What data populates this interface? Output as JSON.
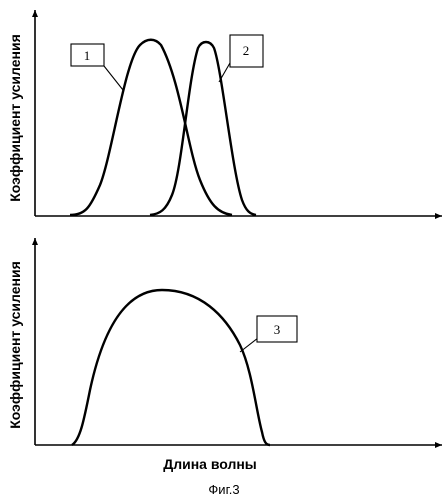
{
  "top_panel": {
    "ylabel": "Коэффициент усиления",
    "curve_labels": [
      "1",
      "2"
    ]
  },
  "bottom_panel": {
    "ylabel": "Коэффициент усиления",
    "xlabel": "Длина волны",
    "curve_labels": [
      "3"
    ]
  },
  "caption": "Фиг.3"
}
